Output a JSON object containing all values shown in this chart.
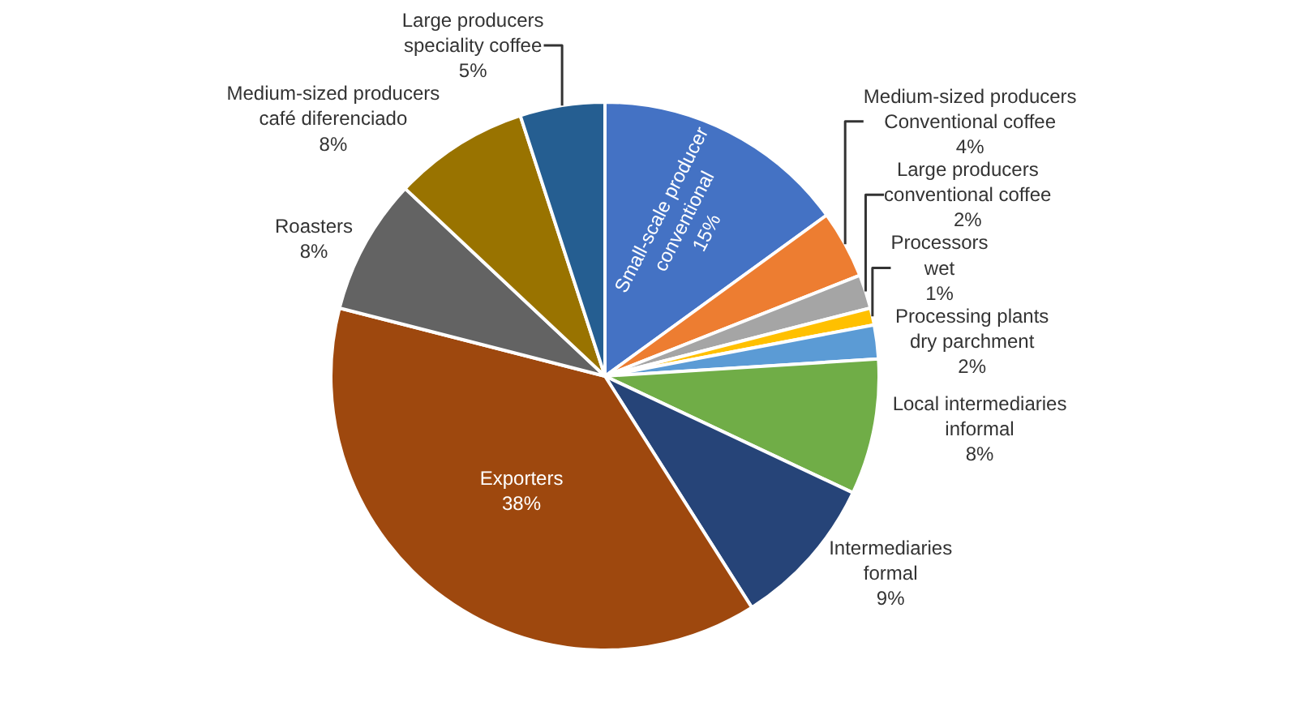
{
  "chart_data": {
    "type": "pie",
    "categories": [
      "Small-scale producer\nconventional",
      "Medium-sized producers\nConventional coffee",
      "Large producers\nconventional coffee",
      "Processors\nwet",
      "Processing plants\ndry parchment",
      "Local intermediaries\ninformal",
      "Intermediaries\nformal",
      "Exporters",
      "Roasters",
      "Medium-sized producers\ncafé diferenciado",
      "Large producers\nspeciality coffee"
    ],
    "values": [
      15,
      4,
      2,
      1,
      2,
      8,
      9,
      38,
      8,
      8,
      5
    ],
    "value_labels": [
      "15%",
      "4%",
      "2%",
      "1%",
      "2%",
      "8%",
      "9%",
      "38%",
      "8%",
      "8%",
      "5%"
    ],
    "colors": [
      "#4472c4",
      "#ed7d31",
      "#a5a5a5",
      "#ffc000",
      "#5b9bd5",
      "#70ad47",
      "#264478",
      "#9e480e",
      "#636363",
      "#997300",
      "#255e91"
    ],
    "legend": false
  }
}
